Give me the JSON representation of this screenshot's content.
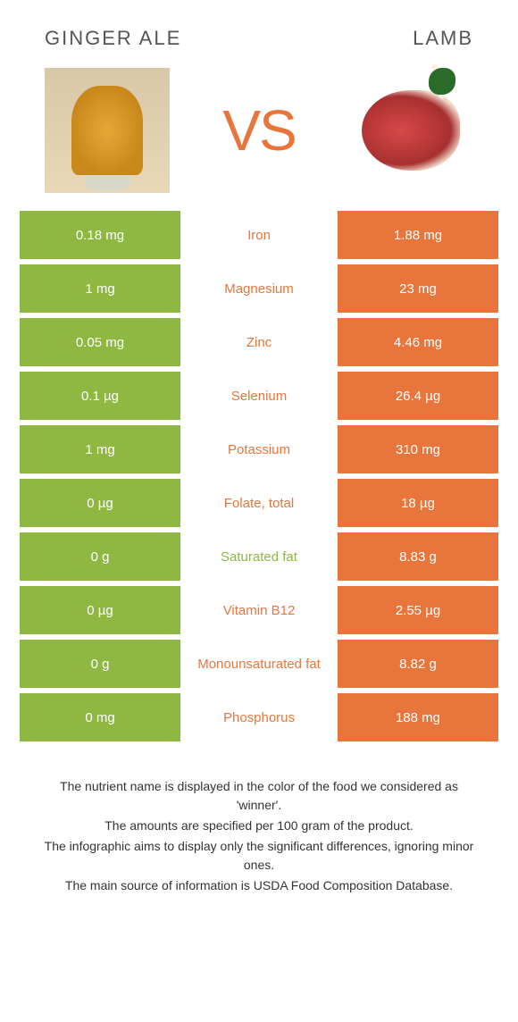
{
  "header": {
    "left_title": "GINGER ALE",
    "right_title": "LAMB",
    "vs_text": "VS"
  },
  "colors": {
    "left_bg": "#8fb843",
    "right_bg": "#e8763c",
    "mid_green": "#8fb843",
    "mid_orange": "#e8763c",
    "title_color": "#555555"
  },
  "rows": [
    {
      "left": "0.18 mg",
      "nutrient": "Iron",
      "right": "1.88 mg",
      "winner": "right"
    },
    {
      "left": "1 mg",
      "nutrient": "Magnesium",
      "right": "23 mg",
      "winner": "right"
    },
    {
      "left": "0.05 mg",
      "nutrient": "Zinc",
      "right": "4.46 mg",
      "winner": "right"
    },
    {
      "left": "0.1 µg",
      "nutrient": "Selenium",
      "right": "26.4 µg",
      "winner": "right"
    },
    {
      "left": "1 mg",
      "nutrient": "Potassium",
      "right": "310 mg",
      "winner": "right"
    },
    {
      "left": "0 µg",
      "nutrient": "Folate, total",
      "right": "18 µg",
      "winner": "right"
    },
    {
      "left": "0 g",
      "nutrient": "Saturated fat",
      "right": "8.83 g",
      "winner": "left"
    },
    {
      "left": "0 µg",
      "nutrient": "Vitamin B12",
      "right": "2.55 µg",
      "winner": "right"
    },
    {
      "left": "0 g",
      "nutrient": "Monounsaturated fat",
      "right": "8.82 g",
      "winner": "right"
    },
    {
      "left": "0 mg",
      "nutrient": "Phosphorus",
      "right": "188 mg",
      "winner": "right"
    }
  ],
  "footer": {
    "line1": "The nutrient name is displayed in the color of the food we considered as 'winner'.",
    "line2": "The amounts are specified per 100 gram of the product.",
    "line3": "The infographic aims to display only the significant differences, ignoring minor ones.",
    "line4": "The main source of information is USDA Food Composition Database."
  }
}
